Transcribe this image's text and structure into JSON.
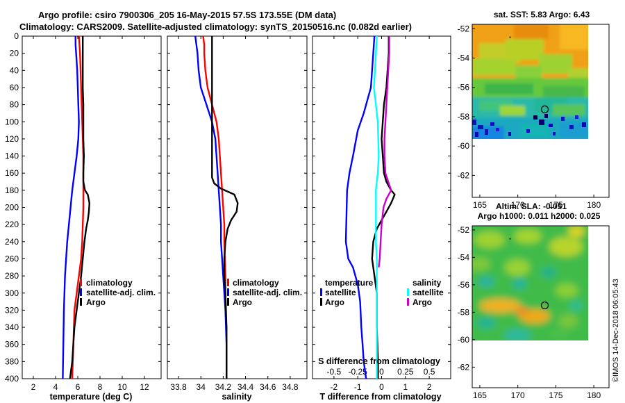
{
  "title": {
    "line1": "Argo profile: csiro 7900306_205 16-May-2015 57.5S 173.55E (DM data)",
    "line2": "Climatology: CARS2009. Satellite-adjusted climatology: synTS_20150516.nc (0.082d earlier)"
  },
  "watermark": "©IMOS 14-Dec-2018 06:05:43",
  "colors": {
    "climatology": "#ff0000",
    "satellite": "#0000ff",
    "argo": "#000000",
    "satellite_salinity": "#00ffff",
    "argo_salinity": "#cc00cc"
  },
  "chart_data": [
    {
      "type": "line",
      "name": "temperature-profile",
      "xlabel": "temperature (deg C)",
      "xlim": [
        1,
        13.5
      ],
      "ylim": [
        0,
        400
      ],
      "y_inverted": true,
      "xticks": [
        "2",
        "4",
        "6",
        "8",
        "10",
        "12"
      ],
      "xtick_values": [
        2,
        4,
        6,
        8,
        10,
        12
      ],
      "yticks": [
        "0",
        "20",
        "40",
        "60",
        "80",
        "100",
        "120",
        "140",
        "160",
        "180",
        "200",
        "220",
        "240",
        "260",
        "280",
        "300",
        "320",
        "340",
        "360",
        "380",
        "400"
      ],
      "ytick_values": [
        0,
        20,
        40,
        60,
        80,
        100,
        120,
        140,
        160,
        180,
        200,
        220,
        240,
        260,
        280,
        300,
        320,
        340,
        360,
        380,
        400
      ],
      "legend": [
        "climatology",
        "satellite-adj. clim.",
        "Argo"
      ],
      "series": [
        {
          "name": "climatology",
          "color": "#ff0000",
          "x": [
            6.1,
            6.15,
            6.2,
            6.25,
            6.3,
            6.35,
            6.4,
            6.45,
            6.5,
            6.5,
            6.5,
            6.5,
            6.45,
            6.4,
            6.3,
            6.1,
            5.9,
            5.7,
            5.6,
            5.5
          ],
          "y": [
            0,
            10,
            20,
            40,
            60,
            80,
            100,
            120,
            140,
            160,
            180,
            200,
            220,
            240,
            260,
            280,
            300,
            320,
            360,
            400
          ]
        },
        {
          "name": "satellite-adj. clim.",
          "color": "#0000ff",
          "x": [
            5.8,
            5.8,
            5.85,
            5.95,
            6.0,
            6.05,
            6.1,
            6.05,
            5.9,
            5.7,
            5.5,
            5.35,
            5.2,
            5.05,
            4.95,
            4.85,
            4.8,
            4.75,
            4.7,
            4.65
          ],
          "y": [
            0,
            10,
            20,
            40,
            60,
            80,
            100,
            120,
            140,
            160,
            180,
            200,
            220,
            240,
            260,
            280,
            300,
            320,
            360,
            400
          ]
        },
        {
          "name": "Argo",
          "color": "#000000",
          "x": [
            6.45,
            6.45,
            6.45,
            6.45,
            6.5,
            6.5,
            6.5,
            6.55,
            6.5,
            6.5,
            6.65,
            6.9,
            7.05,
            7.0,
            6.9,
            6.75,
            6.6,
            6.45,
            6.3,
            6.1,
            5.9,
            5.7,
            5.6,
            5.5,
            5.4,
            5.3
          ],
          "y": [
            0,
            20,
            40,
            60,
            80,
            100,
            120,
            140,
            160,
            170,
            180,
            185,
            195,
            205,
            215,
            225,
            240,
            260,
            280,
            300,
            320,
            340,
            360,
            380,
            390,
            400
          ]
        }
      ]
    },
    {
      "type": "line",
      "name": "salinity-profile",
      "xlabel": "salinity",
      "xlim": [
        33.7,
        34.95
      ],
      "ylim": [
        0,
        400
      ],
      "y_inverted": true,
      "xticks": [
        "33.8",
        "34",
        "34.2",
        "34.4",
        "34.6",
        "34.8"
      ],
      "xtick_values": [
        33.8,
        34.0,
        34.2,
        34.4,
        34.6,
        34.8
      ],
      "legend": [
        "climatology",
        "satellite-adj. clim.",
        "Argo"
      ],
      "series": [
        {
          "name": "climatology",
          "color": "#ff0000",
          "x": [
            34.02,
            34.03,
            34.03,
            34.04,
            34.06,
            34.1,
            34.14,
            34.16,
            34.18,
            34.19,
            34.2,
            34.21,
            34.21,
            34.22,
            34.22,
            34.22,
            34.23,
            34.23,
            34.23
          ],
          "y": [
            0,
            10,
            20,
            40,
            60,
            80,
            100,
            120,
            160,
            180,
            200,
            220,
            240,
            280,
            300,
            320,
            340,
            360,
            400
          ]
        },
        {
          "name": "satellite-adj. clim.",
          "color": "#0000ff",
          "x": [
            33.95,
            33.96,
            33.97,
            33.98,
            34.0,
            34.05,
            34.1,
            34.13,
            34.15,
            34.16,
            34.17,
            34.18,
            34.18,
            34.19,
            34.2,
            34.21,
            34.22,
            34.23,
            34.23
          ],
          "y": [
            0,
            10,
            20,
            40,
            60,
            80,
            100,
            120,
            160,
            180,
            200,
            220,
            240,
            260,
            280,
            300,
            320,
            360,
            400
          ]
        },
        {
          "name": "Argo",
          "color": "#000000",
          "x": [
            34.1,
            34.1,
            34.1,
            34.1,
            34.1,
            34.1,
            34.1,
            34.12,
            34.18,
            34.3,
            34.33,
            34.32,
            34.27,
            34.24,
            34.22,
            34.21,
            34.21,
            34.22,
            34.23,
            34.23
          ],
          "y": [
            0,
            40,
            80,
            120,
            150,
            160,
            165,
            172,
            178,
            185,
            195,
            205,
            215,
            225,
            240,
            260,
            280,
            300,
            340,
            400
          ]
        }
      ]
    },
    {
      "type": "line",
      "name": "difference-profile",
      "xlabel": "T difference from climatology",
      "xlabel_top": "S difference from climatology",
      "xlim": [
        -2.9,
        2.9
      ],
      "ylim": [
        0,
        400
      ],
      "y_inverted": true,
      "xticks": [
        "-2",
        "-1",
        "0",
        "1",
        "2"
      ],
      "xtick_values": [
        -2,
        -1,
        0,
        1,
        2
      ],
      "xticks_top": [
        "-0.5",
        "-0.25",
        "0",
        "0.25",
        "0.5"
      ],
      "xtick_top_values": [
        -0.5,
        -0.25,
        0,
        0.25,
        0.5
      ],
      "legend_left_title": "temperature",
      "legend_left": [
        "satellite",
        "Argo"
      ],
      "legend_right_title": "salinity",
      "legend_right": [
        "satellite",
        "Argo"
      ],
      "series": [
        {
          "name": "temperature satellite",
          "color": "#0000ff",
          "x": [
            -0.3,
            -0.35,
            -0.4,
            -0.45,
            -0.55,
            -0.75,
            -1.0,
            -1.2,
            -1.35,
            -1.45,
            -1.5,
            -1.4,
            -1.2,
            -1.0,
            -0.9,
            -0.85,
            -0.8,
            -0.75,
            -0.7,
            -0.65
          ],
          "y": [
            0,
            20,
            40,
            60,
            70,
            90,
            110,
            140,
            160,
            180,
            240,
            260,
            270,
            290,
            310,
            340,
            360,
            380,
            390,
            400
          ]
        },
        {
          "name": "temperature Argo",
          "color": "#000000",
          "x": [
            0.3,
            0.3,
            0.25,
            0.2,
            0.1,
            0.05,
            0.0,
            0.05,
            0.1,
            0.2,
            0.4,
            0.55,
            0.4,
            0.2,
            0.0,
            -0.2,
            -0.35,
            -0.4,
            -0.3,
            -0.2,
            -0.2,
            -0.15,
            -0.15
          ],
          "y": [
            0,
            20,
            40,
            60,
            80,
            100,
            120,
            140,
            160,
            170,
            180,
            185,
            195,
            205,
            215,
            225,
            240,
            260,
            280,
            300,
            340,
            380,
            400
          ]
        },
        {
          "name": "salinity satellite",
          "color": "#00ffff",
          "x": [
            -0.05,
            -0.06,
            -0.07,
            -0.08,
            -0.06,
            -0.04,
            -0.03,
            -0.04,
            -0.05,
            -0.06,
            -0.06,
            -0.06,
            -0.06,
            -0.05,
            -0.05,
            -0.05,
            -0.05,
            -0.05
          ],
          "y": [
            0,
            20,
            40,
            60,
            80,
            100,
            140,
            160,
            170,
            180,
            200,
            220,
            240,
            260,
            280,
            320,
            360,
            400
          ]
        },
        {
          "name": "salinity Argo",
          "color": "#cc00cc",
          "x": [
            0.08,
            0.08,
            0.07,
            0.06,
            0.05,
            0.04,
            0.03,
            0.03,
            0.04,
            0.07,
            0.1,
            0.05,
            0.02,
            0.0,
            -0.01,
            -0.02,
            -0.03
          ],
          "y": [
            0,
            20,
            40,
            60,
            80,
            100,
            120,
            140,
            160,
            170,
            180,
            190,
            200,
            220,
            240,
            260,
            270
          ]
        }
      ]
    },
    {
      "type": "heatmap",
      "name": "sst-map",
      "title": "sat. SST: 5.83 Argo: 6.43",
      "xlim": [
        164,
        182
      ],
      "ylim": [
        -63.5,
        -51.7
      ],
      "xticks": [
        "165",
        "170",
        "175",
        "180"
      ],
      "xtick_values": [
        165,
        170,
        175,
        180
      ],
      "yticks": [
        "-52",
        "-54",
        "-56",
        "-58",
        "-60",
        "-62"
      ],
      "ytick_values": [
        -52,
        -54,
        -56,
        -58,
        -60,
        -62
      ],
      "argo_position": [
        173.55,
        -57.5
      ]
    },
    {
      "type": "heatmap",
      "name": "sla-map",
      "title_line1": "Altim. SLA: -0.051",
      "title_line2": "Argo h1000: 0.011 h2000: 0.025",
      "xlim": [
        164,
        182
      ],
      "ylim": [
        -63.5,
        -51.7
      ],
      "xticks": [
        "165",
        "170",
        "175",
        "180"
      ],
      "xtick_values": [
        165,
        170,
        175,
        180
      ],
      "yticks": [
        "-52",
        "-54",
        "-56",
        "-58",
        "-60",
        "-62"
      ],
      "ytick_values": [
        -52,
        -54,
        -56,
        -58,
        -60,
        -62
      ],
      "argo_position": [
        173.55,
        -57.5
      ]
    }
  ]
}
